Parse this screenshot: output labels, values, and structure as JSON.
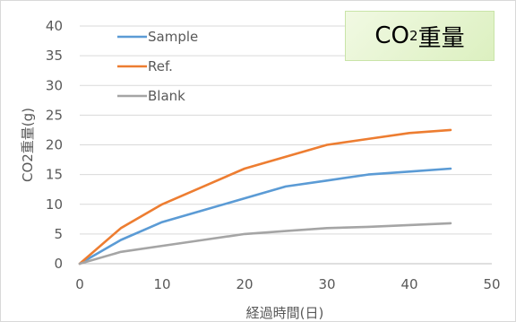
{
  "chart_data": {
    "type": "line",
    "title": {
      "prefix": "CO",
      "subscript": "2",
      "suffix": "重量"
    },
    "xlabel": "経過時間(日)",
    "ylabel": "CO2重量(g)",
    "xlim": [
      0,
      50
    ],
    "ylim": [
      0,
      40
    ],
    "xticks": [
      0,
      10,
      20,
      30,
      40,
      50
    ],
    "yticks": [
      0,
      5,
      10,
      15,
      20,
      25,
      30,
      35,
      40
    ],
    "grid": "horizontal",
    "legend_position": "top-left",
    "series": [
      {
        "name": "Sample",
        "color": "#5b9bd5",
        "x": [
          0,
          5,
          10,
          15,
          20,
          25,
          30,
          35,
          40,
          45
        ],
        "y": [
          0,
          4,
          7,
          9,
          11,
          13,
          14,
          15,
          15.5,
          16
        ]
      },
      {
        "name": "Ref.",
        "color": "#ed7d31",
        "x": [
          0,
          5,
          10,
          15,
          20,
          25,
          30,
          35,
          40,
          45
        ],
        "y": [
          0,
          6,
          10,
          13,
          16,
          18,
          20,
          21,
          22,
          22.5
        ]
      },
      {
        "name": "Blank",
        "color": "#a5a5a5",
        "x": [
          0,
          5,
          10,
          15,
          20,
          25,
          30,
          35,
          40,
          45
        ],
        "y": [
          0,
          2,
          3,
          4,
          5,
          5.5,
          6,
          6.2,
          6.5,
          6.8
        ]
      }
    ]
  }
}
